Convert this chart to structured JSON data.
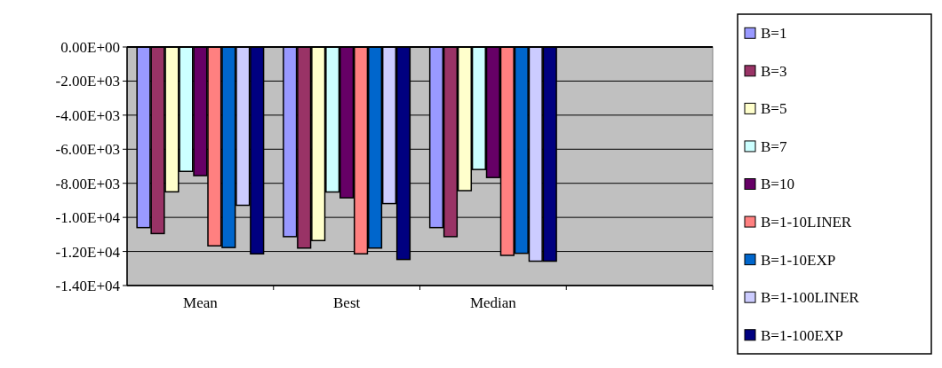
{
  "chart_data": {
    "type": "bar",
    "categories": [
      "Mean",
      "Best",
      "Median",
      null
    ],
    "series": [
      {
        "name": "B=1",
        "color": "#9999ff",
        "values": [
          -10600,
          -11130,
          -10600,
          null
        ]
      },
      {
        "name": "B=3",
        "color": "#993366",
        "values": [
          -10950,
          -11800,
          -11130,
          null
        ]
      },
      {
        "name": "B=5",
        "color": "#ffffcc",
        "values": [
          -8500,
          -11360,
          -8430,
          null
        ]
      },
      {
        "name": "B=7",
        "color": "#ccffff",
        "values": [
          -7300,
          -8510,
          -7190,
          null
        ]
      },
      {
        "name": "B=10",
        "color": "#660066",
        "values": [
          -7550,
          -8850,
          -7660,
          null
        ]
      },
      {
        "name": "B=1-10LINER",
        "color": "#ff8080",
        "values": [
          -11670,
          -12140,
          -12230,
          null
        ]
      },
      {
        "name": "B=1-10EXP",
        "color": "#0066cc",
        "values": [
          -11770,
          -11800,
          -12110,
          null
        ]
      },
      {
        "name": "B=1-100LINER",
        "color": "#ccccff",
        "values": [
          -9290,
          -9190,
          -12570,
          null
        ]
      },
      {
        "name": "B=1-100EXP",
        "color": "#000080",
        "values": [
          -12140,
          -12470,
          -12570,
          null
        ]
      }
    ],
    "ylim": [
      -14000,
      0
    ],
    "yticks": [
      {
        "value": 0,
        "label": "0.00E+00"
      },
      {
        "value": -2000,
        "label": "-2.00E+03"
      },
      {
        "value": -4000,
        "label": "-4.00E+03"
      },
      {
        "value": -6000,
        "label": "-6.00E+03"
      },
      {
        "value": -8000,
        "label": "-8.00E+03"
      },
      {
        "value": -10000,
        "label": "-1.00E+04"
      },
      {
        "value": -12000,
        "label": "-1.20E+04"
      },
      {
        "value": -14000,
        "label": "-1.40E+04"
      }
    ],
    "grid": "y",
    "legend": "right"
  }
}
